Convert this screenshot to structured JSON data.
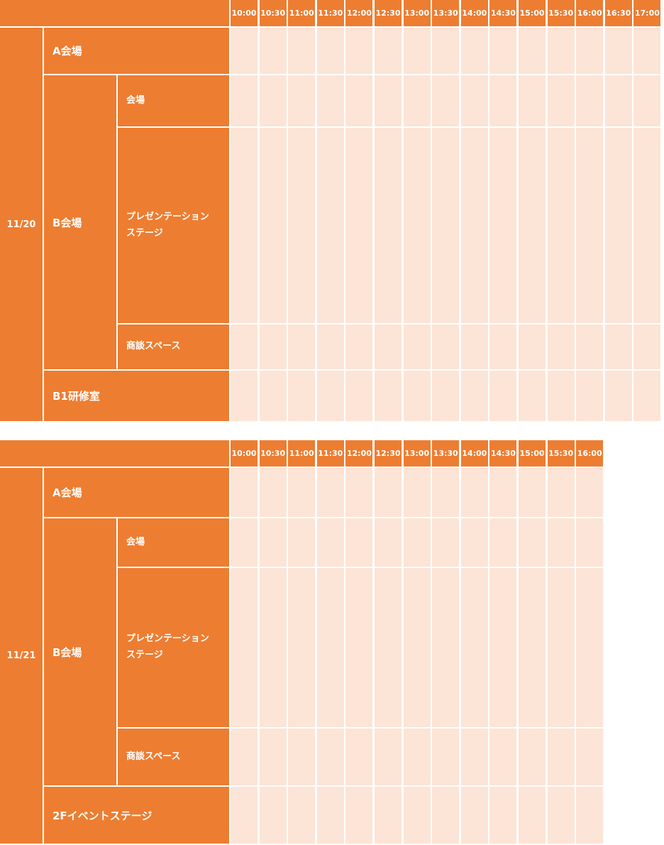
{
  "schedules": [
    {
      "date": "11/20",
      "times": [
        "10:00",
        "10:30",
        "11:00",
        "11:30",
        "12:00",
        "12:30",
        "13:00",
        "13:30",
        "14:00",
        "14:30",
        "15:00",
        "15:30",
        "16:00",
        "16:30",
        "17:00"
      ],
      "a_hall": "A会場",
      "b_hall": "B会場",
      "b_sub": [
        "会場",
        "プレゼンテーション\nステージ",
        "商談スペース"
      ],
      "last_hall": "B1研修室"
    },
    {
      "date": "11/21",
      "times": [
        "10:00",
        "10:30",
        "11:00",
        "11:30",
        "12:00",
        "12:30",
        "13:00",
        "13:30",
        "14:00",
        "14:30",
        "15:00",
        "15:30",
        "16:00"
      ],
      "a_hall": "A会場",
      "b_hall": "B会場",
      "b_sub": [
        "会場",
        "プレゼンテーション\nステージ",
        "商談スペース"
      ],
      "last_hall": "2Fイベントステージ"
    }
  ],
  "colors": {
    "header": "#ED7D31",
    "grid": "#FCE4D6",
    "text": "#FFFFFF"
  }
}
